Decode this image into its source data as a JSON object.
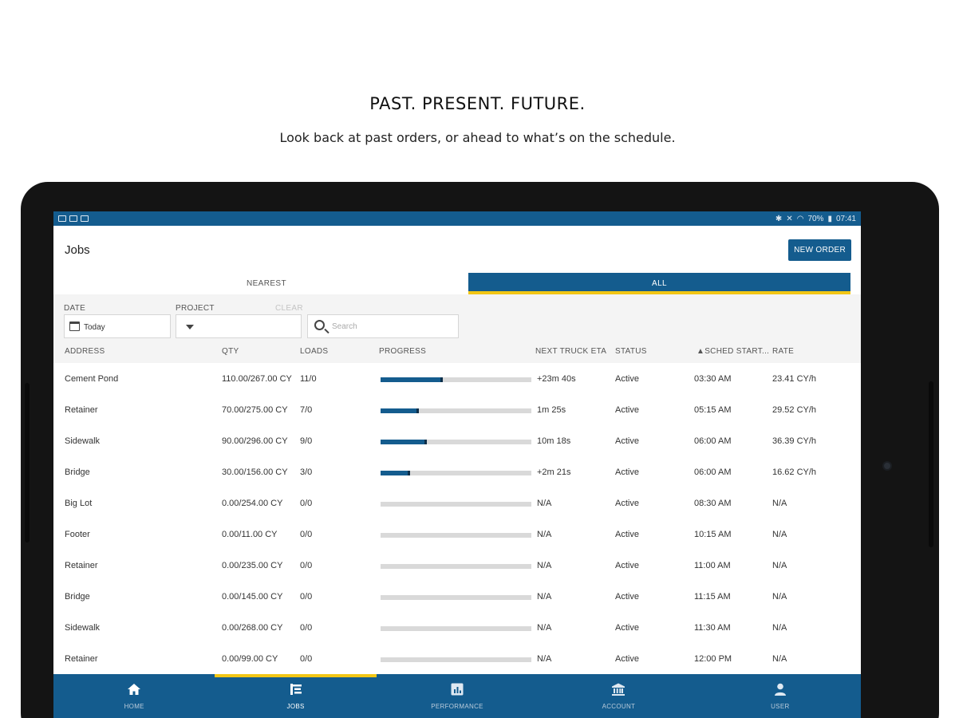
{
  "promo": {
    "headline": "PAST. PRESENT. FUTURE.",
    "subline": "Look back at past orders, or ahead to what’s on the schedule."
  },
  "status_bar": {
    "battery": "70%",
    "time": "07:41"
  },
  "app": {
    "title": "Jobs",
    "new_order_label": "NEW ORDER"
  },
  "tabs": [
    {
      "label": "NEAREST",
      "active": false
    },
    {
      "label": "ALL",
      "active": true
    }
  ],
  "filters": {
    "date_label": "DATE",
    "date_value": "Today",
    "project_label": "PROJECT",
    "clear_label": "CLEAR",
    "search_placeholder": "Search"
  },
  "columns": {
    "address": "ADDRESS",
    "qty": "QTY",
    "loads": "LOADS",
    "progress": "PROGRESS",
    "eta": "NEXT TRUCK ETA",
    "status": "STATUS",
    "start": "▲SCHED START...",
    "rate": "RATE"
  },
  "rows": [
    {
      "address": "Cement Pond",
      "qty": "110.00/267.00 CY",
      "loads": "11/0",
      "progress": 0.41,
      "eta": "+23m 40s",
      "status": "Active",
      "start": "03:30 AM",
      "rate": "23.41 CY/h"
    },
    {
      "address": "Retainer",
      "qty": "70.00/275.00 CY",
      "loads": "7/0",
      "progress": 0.25,
      "eta": "1m 25s",
      "status": "Active",
      "start": "05:15 AM",
      "rate": "29.52 CY/h"
    },
    {
      "address": "Sidewalk",
      "qty": "90.00/296.00 CY",
      "loads": "9/0",
      "progress": 0.3,
      "eta": "10m 18s",
      "status": "Active",
      "start": "06:00 AM",
      "rate": "36.39 CY/h"
    },
    {
      "address": "Bridge",
      "qty": "30.00/156.00 CY",
      "loads": "3/0",
      "progress": 0.19,
      "eta": "+2m 21s",
      "status": "Active",
      "start": "06:00 AM",
      "rate": "16.62 CY/h"
    },
    {
      "address": "Big Lot",
      "qty": "0.00/254.00 CY",
      "loads": "0/0",
      "progress": 0,
      "eta": "N/A",
      "status": "Active",
      "start": "08:30 AM",
      "rate": "N/A"
    },
    {
      "address": "Footer",
      "qty": "0.00/11.00 CY",
      "loads": "0/0",
      "progress": 0,
      "eta": "N/A",
      "status": "Active",
      "start": "10:15 AM",
      "rate": "N/A"
    },
    {
      "address": "Retainer",
      "qty": "0.00/235.00 CY",
      "loads": "0/0",
      "progress": 0,
      "eta": "N/A",
      "status": "Active",
      "start": "11:00 AM",
      "rate": "N/A"
    },
    {
      "address": "Bridge",
      "qty": "0.00/145.00 CY",
      "loads": "0/0",
      "progress": 0,
      "eta": "N/A",
      "status": "Active",
      "start": "11:15 AM",
      "rate": "N/A"
    },
    {
      "address": "Sidewalk",
      "qty": "0.00/268.00 CY",
      "loads": "0/0",
      "progress": 0,
      "eta": "N/A",
      "status": "Active",
      "start": "11:30 AM",
      "rate": "N/A"
    },
    {
      "address": "Retainer",
      "qty": "0.00/99.00 CY",
      "loads": "0/0",
      "progress": 0,
      "eta": "N/A",
      "status": "Active",
      "start": "12:00 PM",
      "rate": "N/A"
    }
  ],
  "nav": [
    {
      "label": "HOME",
      "icon": "home-icon",
      "active": false
    },
    {
      "label": "JOBS",
      "icon": "jobs-icon",
      "active": true
    },
    {
      "label": "PERFORMANCE",
      "icon": "performance-icon",
      "active": false
    },
    {
      "label": "ACCOUNT",
      "icon": "bank-icon",
      "active": false
    },
    {
      "label": "USER",
      "icon": "user-icon",
      "active": false
    }
  ],
  "colors": {
    "brand_blue": "#145c8e",
    "accent_yellow": "#f2c615",
    "progress_track": "#d9d9d9"
  }
}
